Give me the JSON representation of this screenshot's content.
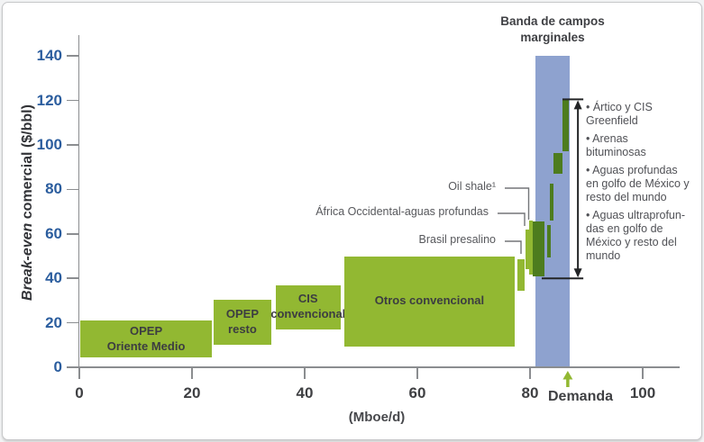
{
  "chart_data": {
    "type": "bar",
    "variant": "oil-supply-cost-curve",
    "xlabel": "(Mboe/d)",
    "ylabel": "Break-even comercial ($/bbl)",
    "ylabel_italic_part": "Break-even",
    "ylabel_regular_part": " comercial ($/bbl)",
    "x_unit": "Mboe/d",
    "y_unit": "$/bbl",
    "xlim": [
      0,
      106
    ],
    "ylim": [
      0,
      148
    ],
    "x_ticks": [
      0,
      20,
      40,
      60,
      80,
      100
    ],
    "y_ticks": [
      0,
      20,
      40,
      60,
      80,
      100,
      120,
      140
    ],
    "grid": false,
    "demand_label": "Demanda",
    "demand_marker_x": 86.7,
    "marginal_band": {
      "label": "Banda de campos\nmarginales",
      "x_range": [
        81,
        87
      ],
      "y_range": [
        0,
        140
      ]
    },
    "supply_blocks": [
      {
        "id": "opep-oriente-medio",
        "name": "OPEP Oriente Medio",
        "label": "OPEP\nOriente Medio",
        "x_range": [
          0.2,
          23.5
        ],
        "breakeven_range": [
          4.5,
          21
        ],
        "label_placement": "inside"
      },
      {
        "id": "opep-resto",
        "name": "OPEP resto",
        "label": "OPEP\nresto",
        "x_range": [
          23.8,
          34.1
        ],
        "breakeven_range": [
          10,
          30.5
        ],
        "label_placement": "inside"
      },
      {
        "id": "cis-convencional",
        "name": "CIS convencional",
        "label": "CIS\nconvencional",
        "x_range": [
          34.8,
          46.4
        ],
        "breakeven_range": [
          17,
          37
        ],
        "label_placement": "inside"
      },
      {
        "id": "otros-convencional",
        "name": "Otros convencional",
        "label": "Otros convencional",
        "x_range": [
          47,
          77.3
        ],
        "breakeven_range": [
          9.5,
          50
        ],
        "label_placement": "inside"
      },
      {
        "id": "brasil-presalino",
        "name": "Brasil presalino",
        "label": "Brasil presalino",
        "x_range": [
          77.8,
          79.1
        ],
        "breakeven_range": [
          34.5,
          48.5
        ],
        "label_placement": "callout"
      },
      {
        "id": "africa-occidental-aguas-profundas",
        "name": "África Occidental-aguas profundas",
        "label": "África Occidental-aguas profundas",
        "x_range": [
          79.2,
          79.8
        ],
        "breakeven_range": [
          44,
          62
        ],
        "label_placement": "callout"
      },
      {
        "id": "oil-shale",
        "name": "Oil shale",
        "label": "Oil shale¹",
        "x_range": [
          79.8,
          80.4
        ],
        "breakeven_range": [
          41.5,
          66
        ],
        "label_placement": "callout"
      }
    ],
    "marginal_field_bars": [
      {
        "x_range": [
          80.4,
          82.6
        ],
        "breakeven_range": [
          41,
          65.5
        ]
      },
      {
        "x_range": [
          83.0,
          83.6
        ],
        "breakeven_range": [
          49.5,
          64
        ]
      },
      {
        "x_range": [
          83.5,
          84.2
        ],
        "breakeven_range": [
          66,
          82.5
        ]
      },
      {
        "x_range": [
          84.1,
          85.7
        ],
        "breakeven_range": [
          87,
          96.5
        ]
      },
      {
        "x_range": [
          85.7,
          86.9
        ],
        "breakeven_range": [
          97,
          120.5
        ]
      }
    ],
    "marginal_range_arrow": {
      "x": 88.5,
      "breakeven_range": [
        40,
        120.5
      ]
    },
    "marginal_field_types": [
      "• Ártico y CIS\nGreenfield",
      "• Arenas\nbituminosas",
      "• Aguas profundas\nen golfo de México y\nresto del mundo",
      "• Aguas ultraprofun-\ndas en golfo de\nMéxico y resto del\nmundo"
    ],
    "colors": {
      "conventional_green": "#92b832",
      "marginal_green": "#4d7c1e",
      "band_blue": "#8ea2cf",
      "y_tick_blue": "#2b5d9e",
      "axis_gray": "#8b8d90",
      "text_dark": "#3f4043",
      "arrow_black": "#232426",
      "callout_line_gray": "#737578"
    }
  }
}
